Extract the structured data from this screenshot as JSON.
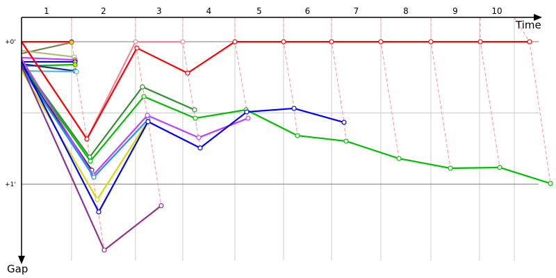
{
  "chart_data": {
    "type": "line",
    "xlabel": "Time",
    "ylabel": "Gap",
    "xlim": [
      0,
      7.44
    ],
    "ylim": [
      -0.171,
      1.537
    ],
    "grid": true,
    "y_ticks": [
      {
        "value": 0,
        "label": "+0'"
      },
      {
        "value": 0.5,
        "label": ""
      },
      {
        "value": 1,
        "label": "+1'"
      }
    ],
    "lap_boundaries": [
      0,
      0.72,
      1.64,
      2.32,
      3.07,
      3.77,
      4.46,
      5.17,
      5.89,
      6.59,
      7.09
    ],
    "lap_labels": [
      "1",
      "2",
      "3",
      "4",
      "5",
      "6",
      "7",
      "8",
      "9",
      "10"
    ],
    "lap_line_color": "#ffa0a8",
    "lap_lines": [
      [
        [
          0.72,
          -0.17
        ],
        [
          0.72,
          0
        ],
        [
          0.94,
          0.683
        ],
        [
          1.19,
          1.463
        ]
      ],
      [
        [
          1.64,
          -0.17
        ],
        [
          1.64,
          0
        ],
        [
          1.82,
          0.556
        ],
        [
          2.01,
          1.151
        ]
      ],
      [
        [
          2.32,
          -0.17
        ],
        [
          2.32,
          0
        ],
        [
          2.39,
          0.22
        ],
        [
          2.57,
          0.746
        ]
      ],
      [
        [
          3.07,
          -0.17
        ],
        [
          3.07,
          0
        ],
        [
          3.26,
          0.537
        ]
      ],
      [
        [
          3.77,
          -0.17
        ],
        [
          3.77,
          0
        ],
        [
          3.92,
          0.468
        ],
        [
          3.97,
          0.659
        ]
      ],
      [
        [
          4.46,
          -0.17
        ],
        [
          4.46,
          0
        ],
        [
          4.64,
          0.566
        ],
        [
          4.67,
          0.698
        ]
      ],
      [
        [
          5.17,
          -0.17
        ],
        [
          5.17,
          0
        ],
        [
          5.43,
          0.82
        ]
      ],
      [
        [
          5.89,
          -0.17
        ],
        [
          5.89,
          0
        ],
        [
          6.17,
          0.888
        ]
      ],
      [
        [
          6.6,
          -0.17
        ],
        [
          6.6,
          0
        ],
        [
          6.88,
          0.883
        ]
      ],
      [
        [
          7.09,
          -0.17
        ],
        [
          7.31,
          0
        ],
        [
          7.61,
          0.995
        ]
      ]
    ],
    "series": [
      {
        "color": "#ff0000",
        "fill": "#ffd000",
        "points": [
          [
            0,
            0
          ],
          [
            0.72,
            0
          ]
        ]
      },
      {
        "color": "#808050",
        "fill": "#ffd000",
        "points": [
          [
            0,
            0.083
          ],
          [
            0.72,
            0.005
          ]
        ]
      },
      {
        "color": "#a8c070",
        "fill": "#ffffff",
        "points": [
          [
            0,
            0.063
          ],
          [
            0.76,
            0.107
          ]
        ]
      },
      {
        "color": "#c040ff",
        "fill": "#ffd000",
        "points": [
          [
            0,
            0.112
          ],
          [
            0.77,
            0.127
          ]
        ]
      },
      {
        "color": "#0000ff",
        "fill": "#ffd000",
        "points": [
          [
            0,
            0.141
          ],
          [
            0.77,
            0.141
          ]
        ]
      },
      {
        "color": "#00c000",
        "fill": "#ffd000",
        "points": [
          [
            0,
            0.171
          ],
          [
            0.77,
            0.161
          ]
        ]
      },
      {
        "color": "#2020a0",
        "fill": "#ffffff",
        "points": [
          [
            0,
            0.156
          ],
          [
            0.77,
            0.205
          ]
        ]
      },
      {
        "color": "#40c0d0",
        "fill": "#ffffff",
        "points": [
          [
            0,
            0.205
          ],
          [
            0.79,
            0.21
          ]
        ]
      },
      {
        "color": "#ff8098",
        "fill": "#ffffff",
        "points": [
          [
            0,
            0
          ],
          [
            0.94,
            0.683
          ],
          [
            1.64,
            0
          ],
          [
            2.32,
            0
          ]
        ]
      },
      {
        "color": "#ff0000",
        "fill": "#ffffff",
        "points": [
          [
            0,
            0
          ],
          [
            0.94,
            0.683
          ],
          [
            1.66,
            0.044
          ],
          [
            2.39,
            0.22
          ],
          [
            3.07,
            0
          ],
          [
            3.77,
            0
          ],
          [
            4.46,
            0
          ],
          [
            5.17,
            0
          ],
          [
            5.89,
            0
          ],
          [
            6.6,
            0
          ],
          [
            7.31,
            0
          ]
        ]
      },
      {
        "color": "#309030",
        "fill": "#ffffff",
        "points": [
          [
            0,
            0.15
          ],
          [
            0.98,
            0.81
          ],
          [
            1.74,
            0.317
          ],
          [
            2.49,
            0.478
          ]
        ]
      },
      {
        "color": "#00c000",
        "fill": "#ffffff",
        "points": [
          [
            0,
            0.16
          ],
          [
            0.99,
            0.839
          ],
          [
            1.76,
            0.385
          ],
          [
            2.5,
            0.537
          ],
          [
            3.23,
            0.478
          ],
          [
            3.97,
            0.659
          ],
          [
            4.67,
            0.698
          ],
          [
            5.43,
            0.82
          ],
          [
            6.17,
            0.888
          ],
          [
            6.88,
            0.883
          ],
          [
            7.61,
            0.995
          ]
        ]
      },
      {
        "color": "#303030",
        "fill": "#ffffff",
        "points": [
          [
            0,
            0.17
          ],
          [
            1.01,
            0.902
          ]
        ]
      },
      {
        "color": "#a0a0a0",
        "fill": "#ffffff",
        "points": [
          [
            0,
            0.19
          ],
          [
            1.02,
            0.927
          ]
        ]
      },
      {
        "color": "#c040ff",
        "fill": "#ffffff",
        "points": [
          [
            0,
            0.12
          ],
          [
            1.03,
            0.937
          ],
          [
            1.81,
            0.517
          ],
          [
            2.55,
            0.673
          ],
          [
            3.26,
            0.537
          ]
        ]
      },
      {
        "color": "#2090ff",
        "fill": "#ffffff",
        "points": [
          [
            0,
            0.18
          ],
          [
            1.04,
            0.951
          ],
          [
            1.82,
            0.546
          ]
        ]
      },
      {
        "color": "#d8d800",
        "fill": "#ffffff",
        "points": [
          [
            0,
            0.2
          ],
          [
            1.09,
            1.107
          ],
          [
            1.82,
            0.556
          ]
        ]
      },
      {
        "color": "#0000ff",
        "fill": "#ffffff",
        "points": [
          [
            0,
            0.14
          ],
          [
            1.11,
            1.195
          ],
          [
            1.82,
            0.561
          ],
          [
            2.57,
            0.746
          ],
          [
            3.24,
            0.493
          ],
          [
            3.92,
            0.468
          ],
          [
            4.64,
            0.566
          ]
        ]
      },
      {
        "color": "#903090",
        "fill": "#ffffff",
        "points": [
          [
            0,
            0.17
          ],
          [
            1.19,
            1.463
          ],
          [
            2.01,
            1.151
          ]
        ]
      }
    ]
  }
}
